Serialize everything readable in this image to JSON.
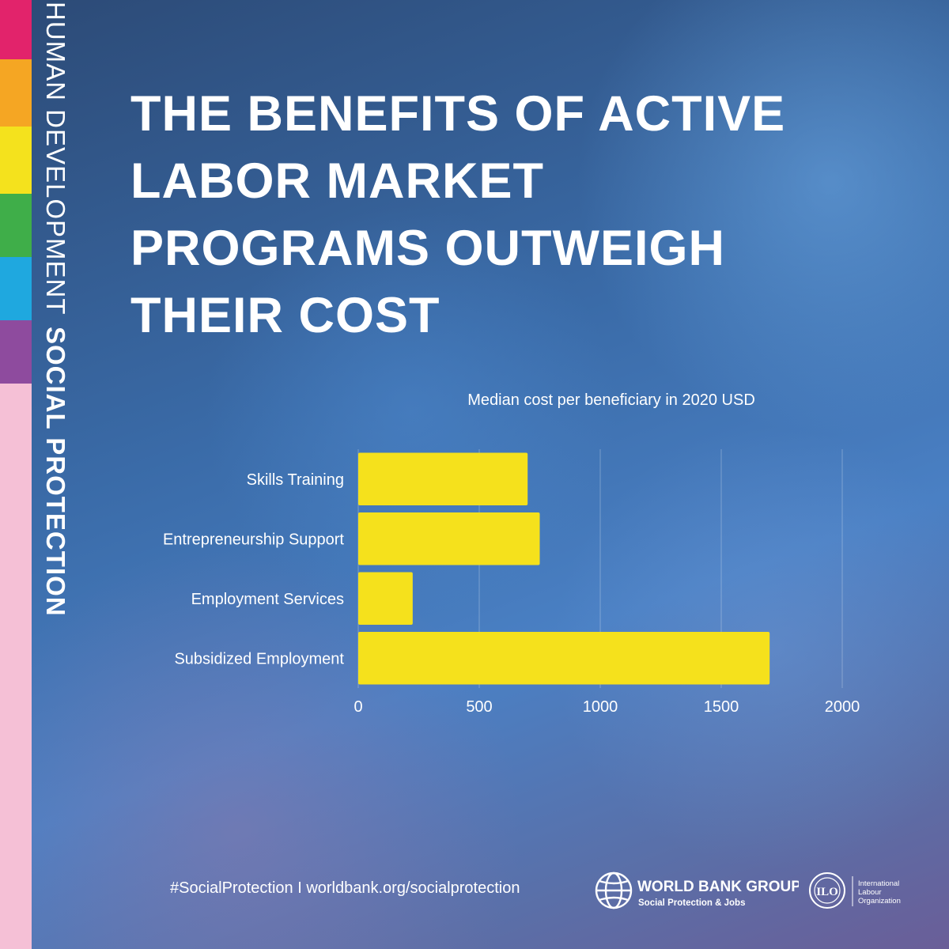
{
  "sidebar": {
    "label_light": "HUMAN DEVELOPMENT",
    "label_bold": "SOCIAL PROTECTION",
    "colors": [
      "#e2236b",
      "#f5a623",
      "#f4e21d",
      "#3fae49",
      "#1fa8df",
      "#8e4b9e",
      "#f5c0d6"
    ]
  },
  "headline": {
    "lines": [
      "THE BENEFITS OF ACTIVE",
      "LABOR MARKET",
      "PROGRAMS OUTWEIGH",
      "THEIR COST"
    ]
  },
  "chart_data": {
    "type": "bar",
    "orientation": "horizontal",
    "title": "Median cost per beneficiary in 2020 USD",
    "categories": [
      "Skills Training",
      "Entrepreneurship Support",
      "Employment Services",
      "Subsidized Employment"
    ],
    "values": [
      700,
      750,
      225,
      1700
    ],
    "xlim": [
      0,
      2000
    ],
    "xticks": [
      "0",
      "500",
      "1000",
      "1500",
      "2000"
    ],
    "xlabel": "",
    "ylabel": "",
    "grid": true,
    "bar_color": "#f5e11c"
  },
  "footer": {
    "text": "#SocialProtection I worldbank.org/socialprotection",
    "wbg_name": "WORLD BANK GROUP",
    "wbg_sub": "Social Protection & Jobs",
    "ilo_mark": "ILO",
    "ilo_name": [
      "International",
      "Labour",
      "Organization"
    ]
  }
}
